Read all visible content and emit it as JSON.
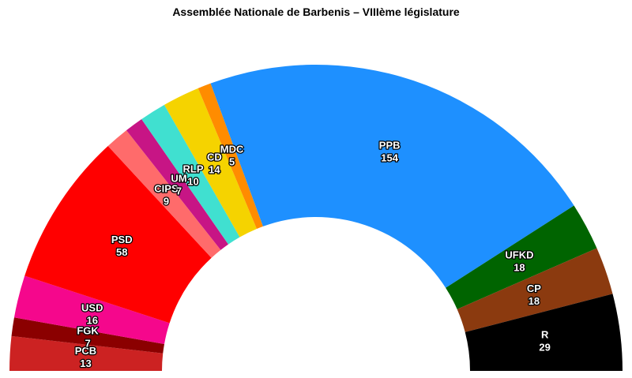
{
  "chart_data": {
    "type": "parliament",
    "title": "Assemblée Nationale de Barbenis – VIIIème législature",
    "categories": [
      "PCB",
      "FGK",
      "USD",
      "PSD",
      "CIPS",
      "UM",
      "RLP",
      "CD",
      "MDC",
      "PPB",
      "UFKD",
      "CP",
      "R"
    ],
    "values": [
      13,
      7,
      16,
      58,
      9,
      7,
      10,
      14,
      5,
      154,
      18,
      18,
      29
    ],
    "colors": [
      "#cc2222",
      "#8b0000",
      "#f5078c",
      "#ff0000",
      "#ff6b6b",
      "#c71585",
      "#40e0d0",
      "#f5d300",
      "#ff8c00",
      "#1e90ff",
      "#006400",
      "#8b3a0f",
      "#000000"
    ]
  }
}
